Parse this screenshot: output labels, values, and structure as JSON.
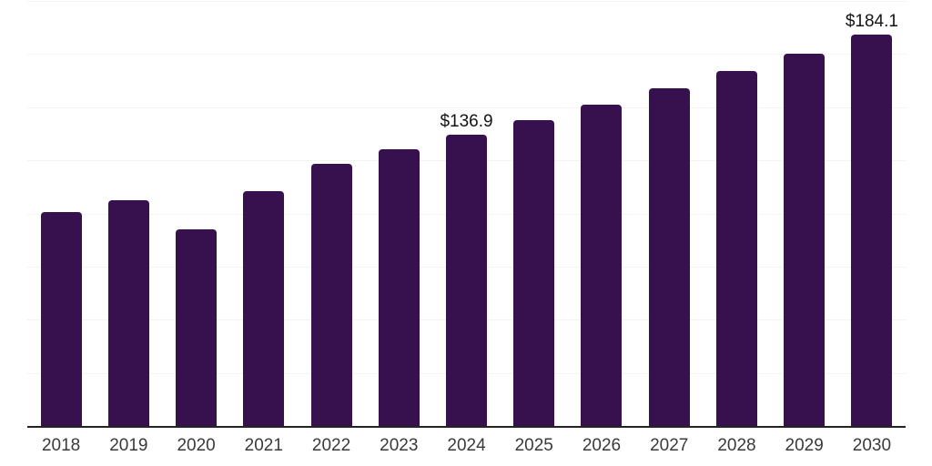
{
  "chart_data": {
    "type": "bar",
    "title": "",
    "categories": [
      "2018",
      "2019",
      "2020",
      "2021",
      "2022",
      "2023",
      "2024",
      "2025",
      "2026",
      "2027",
      "2028",
      "2029",
      "2030"
    ],
    "values": [
      100.6,
      106.3,
      92.6,
      110.6,
      123.4,
      130.1,
      136.9,
      143.7,
      151.3,
      159.0,
      167.1,
      175.3,
      184.1
    ],
    "data_labels": [
      {
        "category": "2024",
        "text": "$136.9"
      },
      {
        "category": "2030",
        "text": "$184.1"
      }
    ],
    "unit_prefix": "$",
    "xlabel": "",
    "ylabel": "",
    "ylim": [
      0,
      200
    ],
    "gridline_step": 25,
    "grid": "horizontal",
    "legend": "none",
    "colors": {
      "bar": "#37114E",
      "axis_line": "#242424",
      "gridline": "#f3f3f3",
      "tick_label": "#3a3a3a",
      "data_label": "#141414",
      "background": "#ffffff"
    }
  }
}
